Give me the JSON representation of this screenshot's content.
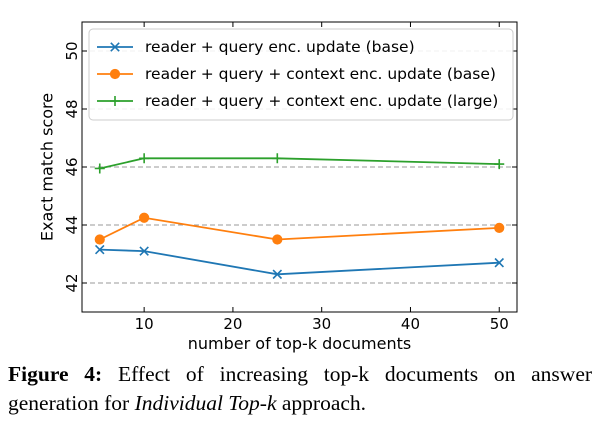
{
  "chart_data": {
    "type": "line",
    "xlabel": "number of top-k documents",
    "ylabel": "Exact match score",
    "xlim": [
      3,
      52
    ],
    "ylim": [
      41,
      51
    ],
    "xticks": [
      10,
      20,
      30,
      40,
      50
    ],
    "yticks": [
      42,
      44,
      46,
      48,
      50
    ],
    "grid": "horizontal dashed",
    "legend_position": "top",
    "series": [
      {
        "name": "reader + query enc. update (base)",
        "color": "#1f77b4",
        "marker": "x",
        "x": [
          5,
          10,
          25,
          50
        ],
        "y": [
          43.15,
          43.1,
          42.3,
          42.7
        ]
      },
      {
        "name": "reader + query + context enc. update (base)",
        "color": "#ff7f0e",
        "marker": "circle",
        "x": [
          5,
          10,
          25,
          50
        ],
        "y": [
          43.5,
          44.25,
          43.5,
          43.9
        ]
      },
      {
        "name": "reader + query + context enc. update (large)",
        "color": "#2ca02c",
        "marker": "plus",
        "x": [
          5,
          10,
          25,
          50
        ],
        "y": [
          45.95,
          46.3,
          46.3,
          46.1
        ]
      }
    ]
  },
  "caption": {
    "label": "Figure 4:",
    "text_before": "Effect of increasing top-k documents on answer generation for",
    "italic": "Individual Top-k",
    "text_after": "approach."
  }
}
